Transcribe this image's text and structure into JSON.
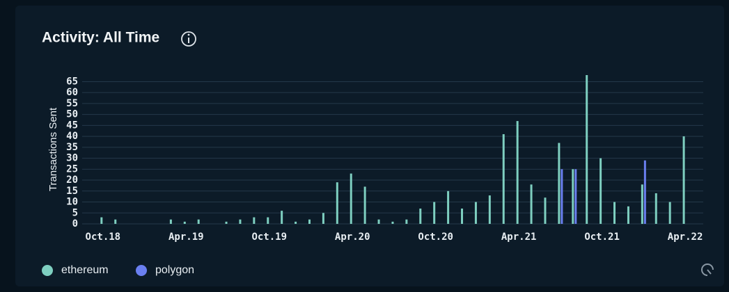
{
  "chart_data": {
    "type": "bar",
    "title": "Activity: All Time",
    "y_label": "Transactions Sent",
    "x": [
      "2018-10",
      "2018-11",
      "2018-12",
      "2019-01",
      "2019-02",
      "2019-03",
      "2019-04",
      "2019-05",
      "2019-06",
      "2019-07",
      "2019-08",
      "2019-09",
      "2019-10",
      "2019-11",
      "2019-12",
      "2020-01",
      "2020-02",
      "2020-03",
      "2020-04",
      "2020-05",
      "2020-06",
      "2020-07",
      "2020-08",
      "2020-09",
      "2020-10",
      "2020-11",
      "2020-12",
      "2021-01",
      "2021-02",
      "2021-03",
      "2021-04",
      "2021-05",
      "2021-06",
      "2021-07",
      "2021-08",
      "2021-09",
      "2021-10",
      "2021-11",
      "2021-12",
      "2022-01",
      "2022-02",
      "2022-03",
      "2022-04"
    ],
    "series": [
      {
        "name": "ethereum",
        "color": "#7ecfc0",
        "values": [
          3,
          2,
          0,
          0,
          0,
          2,
          1,
          2,
          0,
          1,
          2,
          3,
          3,
          6,
          1,
          2,
          5,
          19,
          23,
          17,
          2,
          1,
          2,
          7,
          10,
          15,
          7,
          10,
          13,
          41,
          47,
          18,
          12,
          37,
          25,
          68,
          30,
          10,
          8,
          18,
          14,
          10,
          40
        ]
      },
      {
        "name": "polygon",
        "color": "#6a7ff0",
        "values": [
          0,
          0,
          0,
          0,
          0,
          0,
          0,
          0,
          0,
          0,
          0,
          0,
          0,
          0,
          0,
          0,
          0,
          0,
          0,
          0,
          0,
          0,
          0,
          0,
          0,
          0,
          0,
          0,
          0,
          0,
          0,
          0,
          0,
          25,
          25,
          0,
          0,
          0,
          0,
          29,
          0,
          0,
          0
        ]
      }
    ],
    "xlim": [
      "2018-08",
      "2022-05"
    ],
    "xticks": [
      {
        "value": "2018-10",
        "label": "Oct.18"
      },
      {
        "value": "2019-04",
        "label": "Apr.19"
      },
      {
        "value": "2019-10",
        "label": "Oct.19"
      },
      {
        "value": "2020-04",
        "label": "Apr.20"
      },
      {
        "value": "2020-10",
        "label": "Oct.20"
      },
      {
        "value": "2021-04",
        "label": "Apr.21"
      },
      {
        "value": "2021-10",
        "label": "Oct.21"
      },
      {
        "value": "2022-04",
        "label": "Apr.22"
      }
    ],
    "ylim": [
      0,
      68
    ],
    "yticks": [
      0,
      5,
      10,
      15,
      20,
      25,
      30,
      35,
      40,
      45,
      50,
      55,
      60,
      65
    ],
    "grid": true
  }
}
